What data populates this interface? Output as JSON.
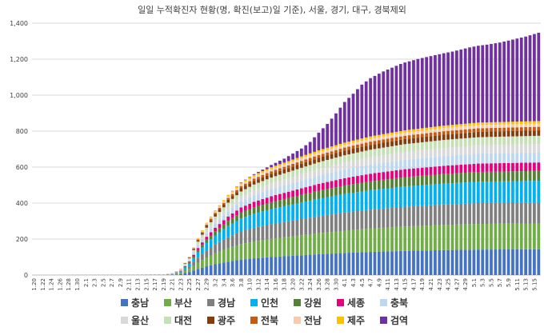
{
  "chart_data": {
    "type": "bar",
    "stacked": true,
    "title": "일일 누적확진자 현황(명, 확진(보고)일 기준), 서울, 경기, 대구, 경북제외",
    "ylim": [
      0,
      1400
    ],
    "yticks": [
      "0",
      "200",
      "400",
      "600",
      "800",
      "1,000",
      "1,200",
      "1,400"
    ],
    "grid": true,
    "legend_position": "bottom",
    "xtick_labels": [
      "1.20",
      "1.22",
      "1.24",
      "1.26",
      "1.28",
      "1.30",
      "2.1",
      "2.3",
      "2.5",
      "2.7",
      "2.9",
      "2.11",
      "2.13",
      "2.15",
      "2.17",
      "2.19",
      "2.21",
      "2.23",
      "2.25",
      "2.27",
      "2.29",
      "3.2",
      "3.4",
      "3.6",
      "3.8",
      "3.10",
      "3.12",
      "3.14",
      "3.16",
      "3.18",
      "3.20",
      "3.22",
      "3.24",
      "3.26",
      "3.28",
      "3.30",
      "4.1",
      "4.3",
      "4.5",
      "4.7",
      "4.9",
      "4.11",
      "4.13",
      "4.15",
      "4.17",
      "4.19",
      "4.21",
      "4.23",
      "4.25",
      "4.27",
      "4.29",
      "5.1",
      "5.3",
      "5.5",
      "5.7",
      "5.9",
      "5.11",
      "5.13",
      "5.15"
    ],
    "series": [
      {
        "name": "충남",
        "color": "#4472C4",
        "final": 143
      },
      {
        "name": "부산",
        "color": "#70AD47",
        "final": 144
      },
      {
        "name": "경남",
        "color": "#7F7F7F",
        "final": 117
      },
      {
        "name": "인천",
        "color": "#00B0F0",
        "final": 120
      },
      {
        "name": "강원",
        "color": "#548235",
        "final": 55
      },
      {
        "name": "세종",
        "color": "#E6007E",
        "final": 47
      },
      {
        "name": "충북",
        "color": "#BDD7EE",
        "final": 56
      },
      {
        "name": "울산",
        "color": "#D9D9D9",
        "final": 46
      },
      {
        "name": "대전",
        "color": "#C5E0B4",
        "final": 46
      },
      {
        "name": "광주",
        "color": "#843C0C",
        "final": 30
      },
      {
        "name": "전북",
        "color": "#C55A11",
        "final": 20
      },
      {
        "name": "전남",
        "color": "#F8CBAD",
        "final": 18
      },
      {
        "name": "제주",
        "color": "#FFC000",
        "final": 14
      },
      {
        "name": "검역",
        "color": "#7030A0",
        "final": 491
      }
    ]
  }
}
